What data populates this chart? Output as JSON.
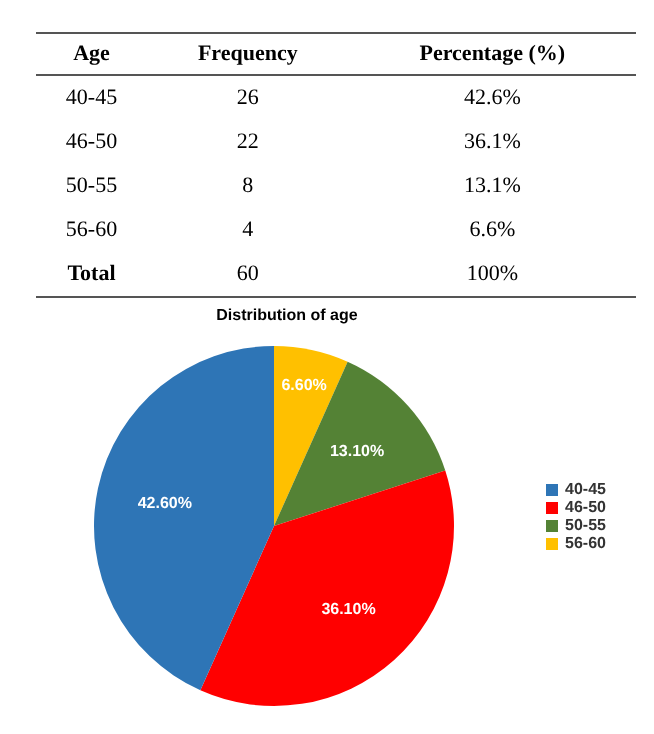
{
  "chart_data": [
    {
      "type": "other",
      "categories": [
        "Age",
        "Frequency",
        "Percentage (%)"
      ],
      "cell_labels": [
        [
          "40-45",
          "26",
          "42.6%"
        ],
        [
          "46-50",
          "22",
          "36.1%"
        ],
        [
          "50-55",
          "8",
          "13.1%"
        ],
        [
          "56-60",
          "4",
          "6.6%"
        ],
        [
          "Total",
          "60",
          "100%"
        ]
      ]
    },
    {
      "type": "pie",
      "title": "Distribution of age",
      "categories": [
        "56-60",
        "50-55",
        "46-50",
        "40-45"
      ],
      "values": [
        6.6,
        13.1,
        36.1,
        42.6
      ],
      "colors": [
        "#ffc000",
        "#548235",
        "#ff0000",
        "#2e75b6"
      ],
      "value_labels": [
        "6.60%",
        "13.10%",
        "36.10%",
        "42.60%"
      ],
      "legend": "right"
    }
  ]
}
